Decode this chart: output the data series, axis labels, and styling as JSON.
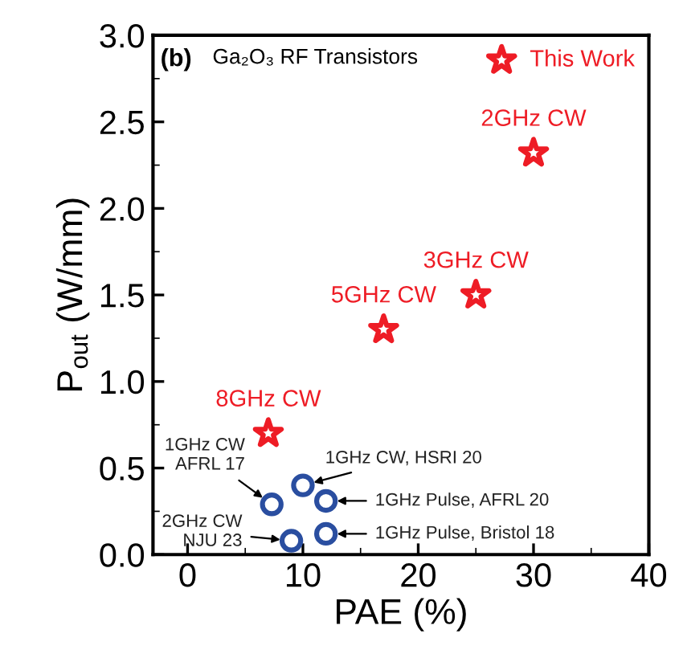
{
  "chart_data": {
    "type": "scatter",
    "xlabel": "PAE (%)",
    "ylabel": "P$_{out}$ (W/mm)",
    "annotations": [
      "(b)",
      "Ga₂O₃ RF Transistors",
      {
        "text": "2GHz CW",
        "x": 30,
        "y": 2.32
      },
      {
        "text": "3GHz CW",
        "x": 25,
        "y": 1.5
      },
      {
        "text": "5GHz CW",
        "x": 17,
        "y": 1.3
      },
      {
        "text": "8GHz CW",
        "x": 7,
        "y": 0.7
      },
      {
        "text": "1GHz CW\nAFRL 17",
        "x": 7.3,
        "y": 0.29
      },
      {
        "text": "1GHz CW, HSRI 20",
        "x": 10,
        "y": 0.4
      },
      {
        "text": "1GHz Pulse, AFRL 20",
        "x": 12,
        "y": 0.31
      },
      {
        "text": "1GHz Pulse, Bristol 18",
        "x": 12,
        "y": 0.12
      },
      {
        "text": "2GHz CW\nNJU 23",
        "x": 9,
        "y": 0.08
      }
    ],
    "xlim": [
      -3,
      40
    ],
    "ylim": [
      0,
      3
    ],
    "xticks": [
      0,
      10,
      20,
      30,
      40
    ],
    "yticks": [
      {
        "value": 0,
        "label": "0.0"
      },
      0.5,
      {
        "value": 1,
        "label": "1.0"
      },
      1.5,
      {
        "value": 2,
        "label": "2.0"
      },
      2.5,
      {
        "value": 3,
        "label": "3.0"
      }
    ],
    "legend": "top right",
    "grid": false,
    "series": [
      {
        "name": "This Work",
        "color": "#ee1c25",
        "marker": "star",
        "x": [
          30,
          25,
          17,
          7
        ],
        "values": [
          2.32,
          1.5,
          1.3,
          0.7
        ]
      },
      {
        "color": "#2a4ea0",
        "marker": "circle",
        "x": [
          7.3,
          10,
          12,
          12,
          9
        ],
        "values": [
          0.29,
          0.4,
          0.31,
          0.12,
          0.08
        ]
      }
    ]
  }
}
